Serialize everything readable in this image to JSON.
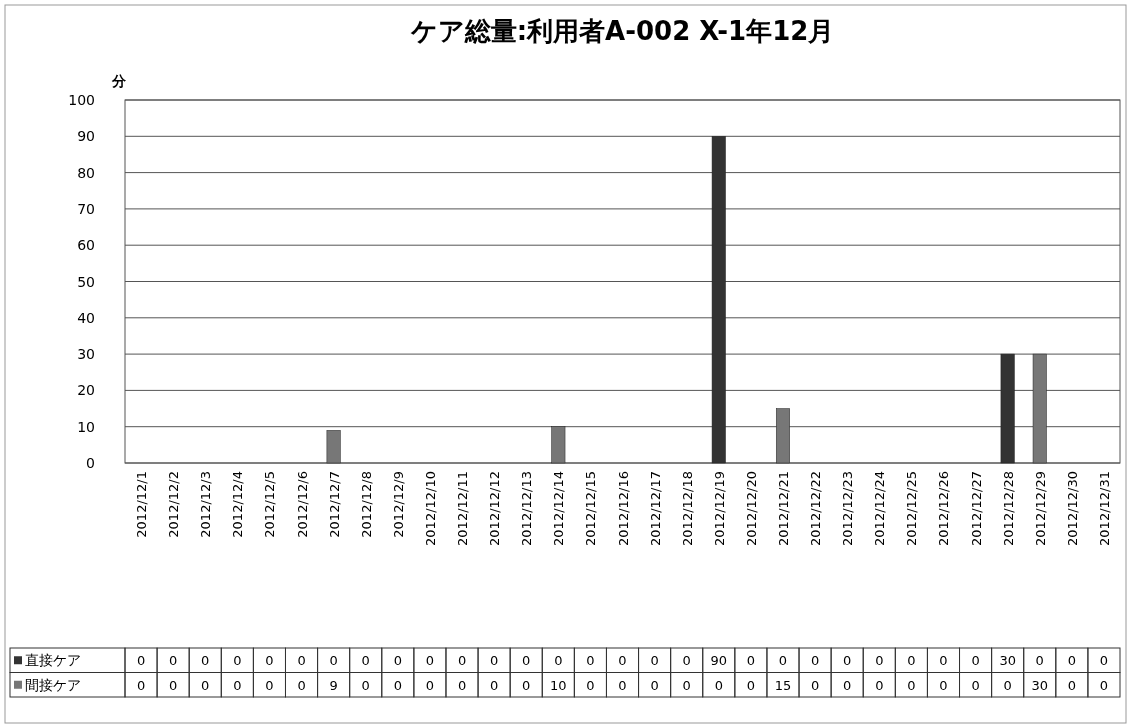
{
  "chart_data": {
    "type": "bar",
    "title": "ケア総量:利用者A-002 X-1年12月",
    "ylabel": "分",
    "categories": [
      "2012/12/1",
      "2012/12/2",
      "2012/12/3",
      "2012/12/4",
      "2012/12/5",
      "2012/12/6",
      "2012/12/7",
      "2012/12/8",
      "2012/12/9",
      "2012/12/10",
      "2012/12/11",
      "2012/12/12",
      "2012/12/13",
      "2012/12/14",
      "2012/12/15",
      "2012/12/16",
      "2012/12/17",
      "2012/12/18",
      "2012/12/19",
      "2012/12/20",
      "2012/12/21",
      "2012/12/22",
      "2012/12/23",
      "2012/12/24",
      "2012/12/25",
      "2012/12/26",
      "2012/12/27",
      "2012/12/28",
      "2012/12/29",
      "2012/12/30",
      "2012/12/31"
    ],
    "series": [
      {
        "name": "直接ケア",
        "color": "#333333",
        "values": [
          0,
          0,
          0,
          0,
          0,
          0,
          0,
          0,
          0,
          0,
          0,
          0,
          0,
          0,
          0,
          0,
          0,
          0,
          90,
          0,
          0,
          0,
          0,
          0,
          0,
          0,
          0,
          30,
          0,
          0,
          0
        ]
      },
      {
        "name": "間接ケア",
        "color": "#777777",
        "values": [
          0,
          0,
          0,
          0,
          0,
          0,
          9,
          0,
          0,
          0,
          0,
          0,
          0,
          10,
          0,
          0,
          0,
          0,
          0,
          0,
          15,
          0,
          0,
          0,
          0,
          0,
          0,
          0,
          30,
          0,
          0
        ]
      }
    ],
    "stacked": true,
    "ylim": [
      0,
      100
    ],
    "yticks": [
      0,
      10,
      20,
      30,
      40,
      50,
      60,
      70,
      80,
      90,
      100
    ],
    "grid": "y",
    "legend": "bottom",
    "data_labels": true
  }
}
